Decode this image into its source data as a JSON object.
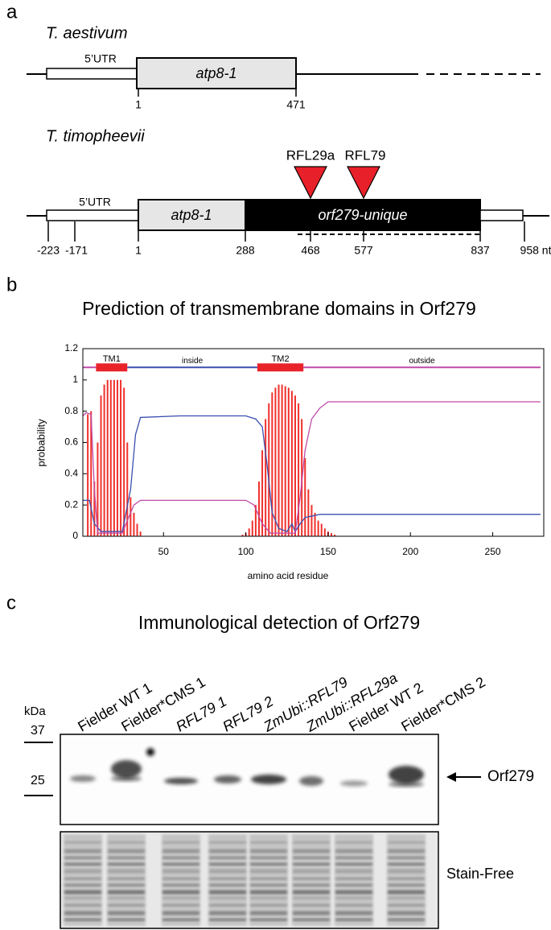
{
  "panel_a": {
    "label": "a",
    "tracks": [
      {
        "species": "T. aestivum",
        "utr": "5’UTR",
        "gene": "atp8-1",
        "positions": [
          "1",
          "471"
        ]
      },
      {
        "species": "T. timopheevii",
        "utr": "5’UTR",
        "gene": "atp8-1",
        "unique": "orf279-unique",
        "insertions": [
          "RFL29a",
          "RFL79"
        ],
        "positions": [
          "-223",
          "-171",
          "1",
          "288",
          "468",
          "577",
          "837",
          "958 nt"
        ]
      }
    ]
  },
  "panel_b": {
    "label": "b"
  },
  "chart_data": {
    "type": "line",
    "title": "Prediction of transmembrane domains in Orf279",
    "xlabel": "amino acid residue",
    "ylabel": "probability",
    "xlim": [
      1,
      281
    ],
    "ylim": [
      0,
      1.2
    ],
    "xticks": [
      50,
      100,
      150,
      200,
      250
    ],
    "yticks": [
      0,
      0.2,
      0.4,
      0.6,
      0.8,
      1,
      1.2
    ],
    "bars": {
      "color": "#f0302c",
      "x": [
        4,
        6,
        8,
        10,
        12,
        14,
        16,
        18,
        20,
        22,
        24,
        26,
        28,
        30,
        32,
        34,
        36,
        98,
        100,
        102,
        104,
        106,
        108,
        110,
        112,
        114,
        116,
        118,
        120,
        122,
        124,
        126,
        128,
        130,
        132,
        134,
        136,
        138,
        140,
        142,
        144,
        146,
        148,
        150,
        152,
        154
      ],
      "values": [
        0.78,
        0.8,
        0.35,
        0.6,
        0.9,
        0.97,
        1.0,
        1.0,
        1.0,
        1.0,
        1.0,
        0.95,
        0.6,
        0.25,
        0.15,
        0.08,
        0.03,
        0.01,
        0.02,
        0.05,
        0.1,
        0.2,
        0.35,
        0.55,
        0.75,
        0.85,
        0.92,
        0.95,
        0.97,
        0.97,
        0.96,
        0.95,
        0.93,
        0.9,
        0.85,
        0.75,
        0.5,
        0.3,
        0.2,
        0.15,
        0.1,
        0.08,
        0.05,
        0.03,
        0.02,
        0.01
      ]
    },
    "series": [
      {
        "color": "#3b4fb0",
        "x": [
          1,
          5,
          8,
          12,
          25,
          30,
          33,
          36,
          60,
          100,
          106,
          110,
          113,
          116,
          120,
          125,
          128,
          130,
          133,
          136,
          145,
          279
        ],
        "values": [
          0.23,
          0.23,
          0.08,
          0.03,
          0.03,
          0.3,
          0.65,
          0.76,
          0.77,
          0.77,
          0.75,
          0.7,
          0.45,
          0.15,
          0.05,
          0.03,
          0.08,
          0.03,
          0.08,
          0.12,
          0.14,
          0.14
        ]
      },
      {
        "color": "#c04aa8",
        "x": [
          1,
          3,
          6,
          8,
          10,
          25,
          28,
          32,
          36,
          100,
          105,
          110,
          115,
          130,
          133,
          136,
          140,
          145,
          150,
          279
        ],
        "values": [
          0.77,
          0.79,
          0.78,
          0.3,
          0.02,
          0.02,
          0.1,
          0.2,
          0.23,
          0.23,
          0.2,
          0.08,
          0.02,
          0.02,
          0.25,
          0.55,
          0.75,
          0.82,
          0.86,
          0.86
        ]
      }
    ],
    "topology": {
      "y": 1.08,
      "segments": [
        {
          "start": 1,
          "end": 9,
          "color": "#c04aa8",
          "box": false
        },
        {
          "label": "TM1",
          "start": 9,
          "end": 28,
          "color": "#e8232a",
          "box": true
        },
        {
          "label": "inside",
          "start": 28,
          "end": 107,
          "color": "#3b4fb0",
          "box": false
        },
        {
          "label": "TM2",
          "start": 107,
          "end": 135,
          "color": "#e8232a",
          "box": true
        },
        {
          "label": "outside",
          "start": 135,
          "end": 279,
          "color": "#c04aa8",
          "box": false
        }
      ]
    }
  },
  "panel_c": {
    "label": "c",
    "title": "Immunological detection of Orf279",
    "lanes": [
      {
        "label": "Fielder WT 1",
        "italic": false
      },
      {
        "label": "Fielder*CMS 1",
        "italic": false
      },
      {
        "label": "RFL79 1",
        "italic": true
      },
      {
        "label": "RFL79 2",
        "italic": true
      },
      {
        "label": "ZmUbi::RFL79",
        "italic": true
      },
      {
        "label": "ZmUbi::RFL29a",
        "italic": true
      },
      {
        "label": "Fielder WT 2",
        "italic": false
      },
      {
        "label": "Fielder*CMS 2",
        "italic": false
      }
    ],
    "marker_unit": "kDa",
    "markers": [
      "37",
      "25"
    ],
    "band_label": "Orf279",
    "loading_label": "Stain-Free"
  }
}
